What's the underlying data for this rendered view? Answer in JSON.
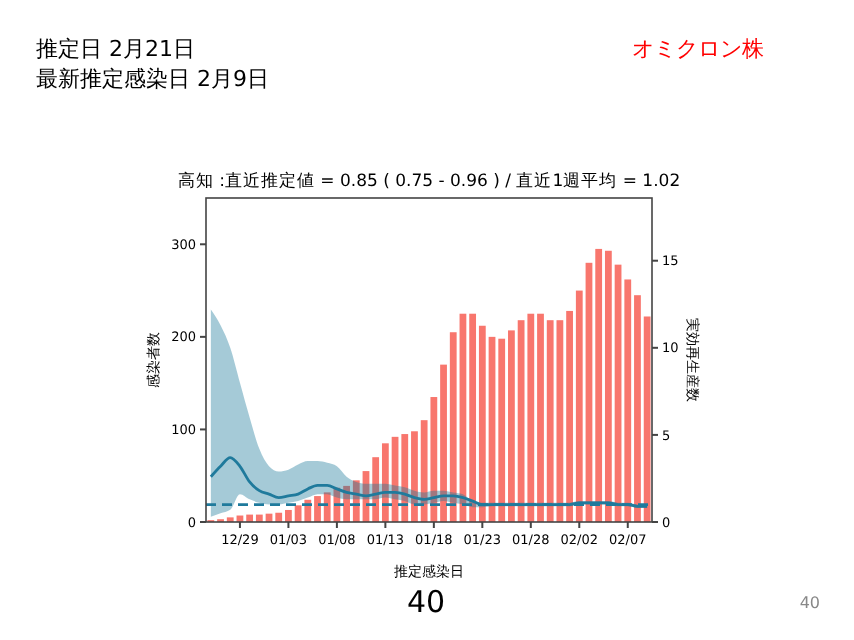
{
  "chart_data": {
    "type": "bar",
    "title": "高知 :直近推定値 = 0.85 ( 0.75 - 0.96 ) / 直近1週平均 = 1.02",
    "xlabel": "推定感染日",
    "ylabel": "感染者数",
    "y2label": "実効再生産数",
    "annotations": [
      "推定日  2月21日",
      "最新推定感染日  2月9日",
      "オミクロン株",
      "40",
      "40"
    ],
    "categories": [
      null,
      null,
      null,
      "12/29",
      null,
      null,
      null,
      null,
      "01/03",
      null,
      null,
      null,
      null,
      "01/08",
      null,
      null,
      null,
      null,
      "01/13",
      null,
      null,
      null,
      null,
      "01/18",
      null,
      null,
      null,
      null,
      "01/23",
      null,
      null,
      null,
      null,
      "01/28",
      null,
      null,
      null,
      null,
      "02/02",
      null,
      null,
      null,
      null,
      "02/07",
      null,
      null
    ],
    "ylim": [
      0,
      350
    ],
    "yticks": [
      0,
      100,
      200,
      300
    ],
    "y2lim": [
      0,
      18.6
    ],
    "y2ticks": [
      0,
      5,
      10,
      15
    ],
    "series": [
      {
        "color": "#f8766d",
        "values": [
          2,
          3,
          5,
          7,
          8,
          8,
          9,
          10,
          13,
          18,
          24,
          28,
          32,
          37,
          39,
          45,
          55,
          70,
          85,
          92,
          95,
          98,
          110,
          135,
          170,
          205,
          225,
          225,
          212,
          200,
          198,
          207,
          218,
          225,
          225,
          218,
          218,
          228,
          250,
          280,
          295,
          293,
          278,
          262,
          245,
          222
        ]
      },
      {
        "type": "line",
        "axis": "y2",
        "color": "#1f7a9c",
        "values": [
          2.6,
          3.2,
          3.7,
          3.2,
          2.3,
          1.8,
          1.6,
          1.4,
          1.5,
          1.6,
          1.9,
          2.1,
          2.1,
          1.9,
          1.7,
          1.6,
          1.5,
          1.6,
          1.7,
          1.7,
          1.6,
          1.4,
          1.3,
          1.4,
          1.5,
          1.5,
          1.4,
          1.2,
          1.0,
          1.0,
          1.0,
          1.0,
          1.0,
          1.0,
          1.0,
          1.0,
          1.0,
          1.0,
          1.1,
          1.1,
          1.1,
          1.1,
          1.0,
          1.0,
          0.9,
          0.9
        ],
        "lower": [
          0.3,
          0.5,
          0.7,
          1.6,
          1.3,
          1.1,
          1.0,
          1.0,
          1.1,
          1.2,
          1.4,
          1.6,
          1.6,
          1.4,
          1.3,
          1.3,
          1.3,
          1.3,
          1.4,
          1.3,
          1.2,
          1.0,
          1.0,
          1.1,
          1.2,
          1.1,
          1.0,
          0.85,
          0.85,
          0.9,
          0.9,
          0.9,
          0.9,
          0.9,
          0.9,
          0.9,
          0.9,
          0.9,
          1.0,
          1.0,
          1.0,
          1.0,
          0.9,
          0.9,
          0.8,
          0.8
        ],
        "upper": [
          12.2,
          11.3,
          10.0,
          8.0,
          6.0,
          4.2,
          3.2,
          2.9,
          3.0,
          3.3,
          3.5,
          3.5,
          3.4,
          3.2,
          2.6,
          2.3,
          2.2,
          2.2,
          2.2,
          2.1,
          2.0,
          1.8,
          1.7,
          1.8,
          1.8,
          1.7,
          1.6,
          1.2,
          1.1,
          1.1,
          1.1,
          1.1,
          1.1,
          1.1,
          1.1,
          1.1,
          1.1,
          1.1,
          1.2,
          1.2,
          1.2,
          1.2,
          1.1,
          1.1,
          1.0,
          1.0
        ]
      }
    ],
    "ref_lines": [
      {
        "axis": "y2",
        "value": 1,
        "color": "#1f7a9c",
        "line_style": "dashed"
      }
    ]
  }
}
